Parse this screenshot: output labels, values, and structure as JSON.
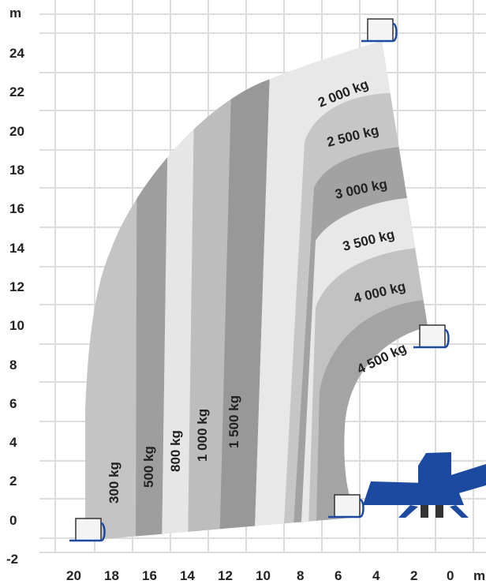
{
  "chart_data": {
    "type": "load-chart",
    "x_unit": "m",
    "y_unit": "m",
    "x_ticks": [
      20,
      18,
      16,
      14,
      12,
      10,
      8,
      6,
      4,
      2,
      0
    ],
    "y_ticks": [
      24,
      22,
      20,
      18,
      16,
      14,
      12,
      10,
      8,
      6,
      4,
      2,
      0,
      -2
    ],
    "x_range_m": [
      21.5,
      -1.5
    ],
    "y_range_m": [
      -2,
      25.5
    ],
    "zones": [
      {
        "label": "300 kg",
        "color": "#c4c4c4"
      },
      {
        "label": "500 kg",
        "color": "#9e9e9e"
      },
      {
        "label": "800 kg",
        "color": "#e6e6e6"
      },
      {
        "label": "1 000 kg",
        "color": "#bdbdbd"
      },
      {
        "label": "1 500 kg",
        "color": "#989898"
      },
      {
        "label": "2 000 kg",
        "color": "#e8e8e8"
      },
      {
        "label": "2 500 kg",
        "color": "#c6c6c6"
      },
      {
        "label": "3 000 kg",
        "color": "#a2a2a2"
      },
      {
        "label": "3 500 kg",
        "color": "#e8e8e8"
      },
      {
        "label": "4 000 kg",
        "color": "#c2c2c2"
      },
      {
        "label": "4 500 kg",
        "color": "#a4a4a4"
      }
    ],
    "machine_color": "#1c4aa0"
  }
}
